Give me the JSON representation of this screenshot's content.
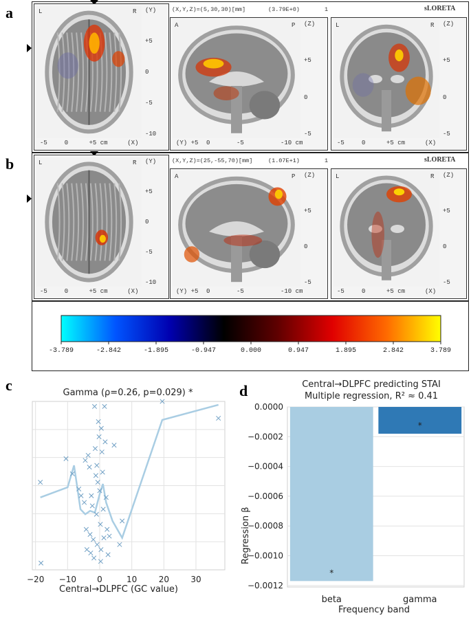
{
  "panels": {
    "a": "a",
    "b": "b",
    "c": "c",
    "d": "d"
  },
  "brain_rows": [
    {
      "header_coords": "(X,Y,Z)=(5,30,30)[mm]",
      "header_value": "(3.79E+0)",
      "header_index": "1",
      "brand": "sLORETA",
      "axial": {
        "left": "L",
        "right": "R",
        "yticks": [
          "(Y)",
          "+5",
          "0",
          "-5",
          "-10"
        ],
        "xticks": [
          "-5",
          "0",
          "+5 cm",
          "(X)"
        ]
      },
      "sagittal": {
        "left": "A",
        "right": "P",
        "yticks": [
          "(Z)",
          "+5",
          "0",
          "-5"
        ],
        "xticks": [
          "(Y) +5",
          "0",
          "-5",
          "-10 cm"
        ]
      },
      "coronal": {
        "left": "L",
        "right": "R",
        "yticks": [
          "(Z)",
          "+5",
          "0",
          "-5"
        ],
        "xticks": [
          "-5",
          "0",
          "+5 cm",
          "(X)"
        ]
      }
    },
    {
      "header_coords": "(X,Y,Z)=(25,-55,70)[mm]",
      "header_value": "(1.07E+1)",
      "header_index": "1",
      "brand": "sLORETA",
      "axial": {
        "left": "L",
        "right": "R",
        "yticks": [
          "(Y)",
          "+5",
          "0",
          "-5",
          "-10"
        ],
        "xticks": [
          "-5",
          "0",
          "+5 cm",
          "(X)"
        ]
      },
      "sagittal": {
        "left": "A",
        "right": "P",
        "yticks": [
          "(Z)",
          "+5",
          "0",
          "-5"
        ],
        "xticks": [
          "(Y) +5",
          "0",
          "-5",
          "-10 cm"
        ]
      },
      "coronal": {
        "left": "L",
        "right": "R",
        "yticks": [
          "(Z)",
          "+5",
          "0",
          "-5"
        ],
        "xticks": [
          "-5",
          "0",
          "+5 cm",
          "(X)"
        ]
      }
    }
  ],
  "colorbar": {
    "ticks": [
      "-3.789",
      "-2.842",
      "-1.895",
      "-0.947",
      "0.000",
      "0.947",
      "1.895",
      "2.842",
      "3.789"
    ],
    "stops": [
      "#00ffff",
      "#0055ff",
      "#0000b0",
      "#000000",
      "#600000",
      "#e00000",
      "#ff6a00",
      "#ffff00"
    ]
  },
  "chart_data": [
    {
      "type": "scatter",
      "title": "Gamma (ρ=0.26, p=0.029) *",
      "xlabel": "Central→DLPFC (GC value)",
      "ylabel": "",
      "xlim": [
        -21,
        39
      ],
      "ylim": [
        0,
        1
      ],
      "xticks": [
        -20,
        -10,
        0,
        10,
        20,
        30
      ],
      "grid": true,
      "marker_color": "#6f9fc4",
      "line_color": "#a9cde3",
      "points": [
        [
          -18.5,
          0.52
        ],
        [
          -18.3,
          0.04
        ],
        [
          -10.5,
          0.66
        ],
        [
          -8.5,
          0.57
        ],
        [
          -6.5,
          0.48
        ],
        [
          -5.8,
          0.44
        ],
        [
          -4.8,
          0.4
        ],
        [
          -4.5,
          0.65
        ],
        [
          -4.2,
          0.24
        ],
        [
          -4.0,
          0.12
        ],
        [
          -3.6,
          0.68
        ],
        [
          -3.2,
          0.61
        ],
        [
          -3.0,
          0.21
        ],
        [
          -2.8,
          0.1
        ],
        [
          -2.6,
          0.44
        ],
        [
          -2.3,
          0.38
        ],
        [
          -2.0,
          0.18
        ],
        [
          -1.8,
          0.07
        ],
        [
          -1.6,
          0.97
        ],
        [
          -1.4,
          0.72
        ],
        [
          -1.2,
          0.56
        ],
        [
          -1.0,
          0.33
        ],
        [
          -0.8,
          0.15
        ],
        [
          -0.6,
          0.52
        ],
        [
          -0.4,
          0.88
        ],
        [
          -0.2,
          0.79
        ],
        [
          0.0,
          0.47
        ],
        [
          0.2,
          0.27
        ],
        [
          0.4,
          0.12
        ],
        [
          0.5,
          0.84
        ],
        [
          0.7,
          0.7
        ],
        [
          0.9,
          0.58
        ],
        [
          1.1,
          0.36
        ],
        [
          1.3,
          0.19
        ],
        [
          1.5,
          0.97
        ],
        [
          1.7,
          0.76
        ],
        [
          2.0,
          0.43
        ],
        [
          2.3,
          0.24
        ],
        [
          2.6,
          0.09
        ],
        [
          3.0,
          0.2
        ],
        [
          4.5,
          0.74
        ],
        [
          6.2,
          0.15
        ],
        [
          7.0,
          0.29
        ],
        [
          19.5,
          1.0
        ],
        [
          37.0,
          0.9
        ],
        [
          -0.9,
          0.62
        ],
        [
          0.3,
          0.05
        ]
      ],
      "trend": [
        [
          -18.5,
          0.43
        ],
        [
          -10,
          0.49
        ],
        [
          -8,
          0.62
        ],
        [
          -6,
          0.36
        ],
        [
          -4.5,
          0.33
        ],
        [
          -3,
          0.35
        ],
        [
          -1.5,
          0.34
        ],
        [
          0,
          0.45
        ],
        [
          1,
          0.51
        ],
        [
          2,
          0.4
        ],
        [
          4,
          0.29
        ],
        [
          7,
          0.19
        ],
        [
          19.5,
          0.89
        ],
        [
          37,
          0.98
        ]
      ]
    },
    {
      "type": "bar",
      "title": "Central→DLPFC predicting STAI\nMultiple regression, R² ≈ 0.41",
      "xlabel": "Frequency band",
      "ylabel": "Regression β",
      "categories": [
        "beta",
        "gamma"
      ],
      "values": [
        -0.00117,
        -0.00018
      ],
      "annotations": [
        "*",
        "*"
      ],
      "colors": [
        "#a9cde2",
        "#2f79b5"
      ],
      "ylim": [
        -0.00121,
        0.0
      ],
      "yticks": [
        "0.0000",
        "−0.0002",
        "−0.0004",
        "−0.0006",
        "−0.0008",
        "−0.0010",
        "−0.0012"
      ],
      "grid": true
    }
  ]
}
